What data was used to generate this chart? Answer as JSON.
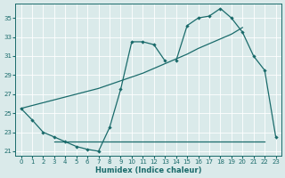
{
  "xlabel": "Humidex (Indice chaleur)",
  "bg_color": "#daeaea",
  "line_color": "#1a6b6b",
  "xlim": [
    -0.5,
    23.5
  ],
  "ylim": [
    20.5,
    36.5
  ],
  "yticks": [
    21,
    23,
    25,
    27,
    29,
    31,
    33,
    35
  ],
  "xticks": [
    0,
    1,
    2,
    3,
    4,
    5,
    6,
    7,
    8,
    9,
    10,
    11,
    12,
    13,
    14,
    15,
    16,
    17,
    18,
    19,
    20,
    21,
    22,
    23
  ],
  "series": [
    {
      "x": [
        0,
        1,
        2,
        3,
        4,
        5,
        6,
        7,
        8,
        9,
        10,
        11,
        12,
        13
      ],
      "y": [
        25.5,
        24.3,
        23.0,
        22.5,
        22.0,
        21.5,
        21.2,
        21.0,
        23.5,
        27.5,
        32.5,
        32.5,
        32.2,
        30.5
      ],
      "has_markers": true
    },
    {
      "x": [
        3,
        4,
        5,
        6,
        7,
        8,
        9,
        10,
        11,
        12,
        13,
        14,
        15,
        16,
        17,
        18,
        19,
        20,
        21,
        22
      ],
      "y": [
        22.0,
        22.0,
        22.0,
        22.0,
        22.0,
        22.0,
        22.0,
        22.0,
        22.0,
        22.0,
        22.0,
        22.0,
        22.0,
        22.0,
        22.0,
        22.0,
        22.0,
        22.0,
        22.0,
        22.0
      ],
      "has_markers": false
    },
    {
      "x": [
        0,
        1,
        2,
        3,
        4,
        5,
        6,
        7,
        8,
        9,
        10,
        11,
        12,
        13,
        14,
        15,
        16,
        17,
        18,
        19,
        20
      ],
      "y": [
        25.5,
        25.8,
        26.1,
        26.4,
        26.7,
        27.0,
        27.3,
        27.6,
        28.0,
        28.4,
        28.8,
        29.2,
        29.7,
        30.2,
        30.7,
        31.2,
        31.8,
        32.3,
        32.8,
        33.3,
        34.0
      ],
      "has_markers": false
    },
    {
      "x": [
        14,
        15,
        16,
        17,
        18,
        19,
        20,
        21,
        22,
        23
      ],
      "y": [
        30.5,
        34.2,
        35.0,
        35.2,
        36.0,
        35.0,
        33.5,
        31.0,
        29.5,
        22.5
      ],
      "has_markers": true
    }
  ]
}
